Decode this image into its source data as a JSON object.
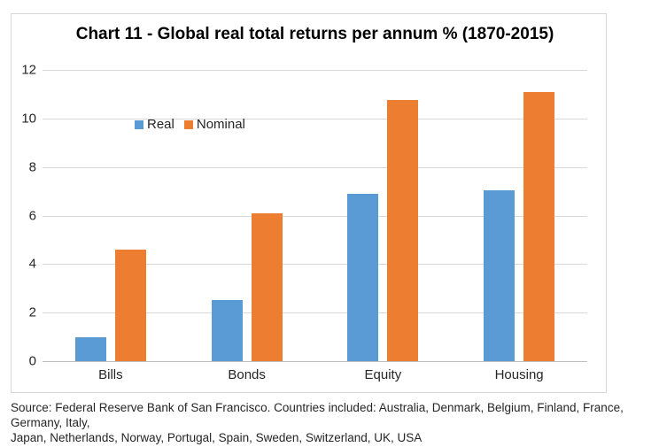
{
  "chart": {
    "title": "Chart 11 - Global real total returns per annum % (1870-2015)"
  },
  "source_note": "Source: Federal Reserve Bank of San Francisco. Countries included: Australia, Denmark, Belgium, Finland, France, Germany, Italy,\nJapan, Netherlands, Norway, Portugal, Spain, Sweden, Switzerland, UK, USA",
  "chart_data": {
    "type": "bar",
    "title": "Chart 11 - Global real total returns per annum % (1870-2015)",
    "categories": [
      "Bills",
      "Bonds",
      "Equity",
      "Housing"
    ],
    "series": [
      {
        "name": "Real",
        "color": "#5B9BD5",
        "values": [
          1.0,
          2.5,
          6.9,
          7.05
        ]
      },
      {
        "name": "Nominal",
        "color": "#ED7D31",
        "values": [
          4.6,
          6.1,
          10.75,
          11.1
        ]
      }
    ],
    "xlabel": "",
    "ylabel": "",
    "ylim": [
      0,
      12
    ],
    "yticks": [
      0,
      2,
      4,
      6,
      8,
      10,
      12
    ],
    "grid": true,
    "legend_position": "inside-top-left",
    "colors": {
      "gridline": "#D9D9D9",
      "axis_line": "#BFBFBF",
      "axis_text": "#262626",
      "title_text": "#000000",
      "frame_border": "#D6D6D6",
      "background": "#FFFFFF"
    }
  }
}
